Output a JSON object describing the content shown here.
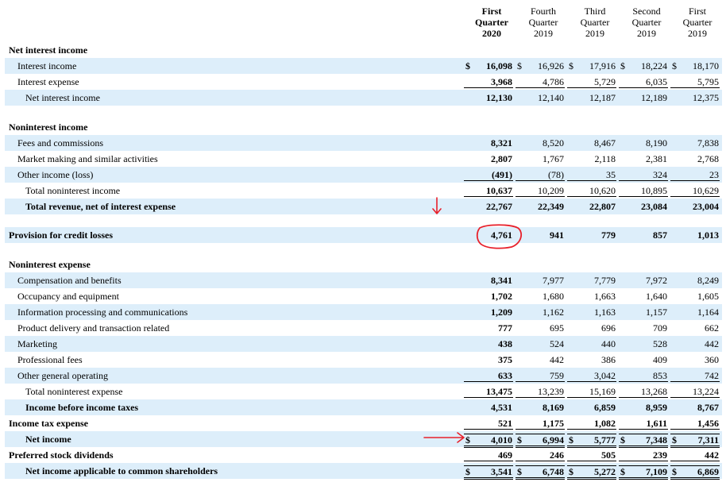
{
  "headers": [
    {
      "lines": [
        "First",
        "Quarter",
        "2020"
      ],
      "bold": true
    },
    {
      "lines": [
        "Fourth",
        "Quarter",
        "2019"
      ],
      "bold": false
    },
    {
      "lines": [
        "Third",
        "Quarter",
        "2019"
      ],
      "bold": false
    },
    {
      "lines": [
        "Second",
        "Quarter",
        "2019"
      ],
      "bold": false
    },
    {
      "lines": [
        "First",
        "Quarter",
        "2019"
      ],
      "bold": false
    }
  ],
  "rows": [
    {
      "label": "Net interest income",
      "bold": true,
      "indent": 0,
      "shade": false
    },
    {
      "label": "Interest income",
      "indent": 1,
      "shade": true,
      "values": [
        "16,098",
        "16,926",
        "17,916",
        "18,224",
        "18,170"
      ],
      "currency": true
    },
    {
      "label": "Interest expense",
      "indent": 1,
      "shade": false,
      "values": [
        "3,968",
        "4,786",
        "5,729",
        "6,035",
        "5,795"
      ],
      "rule": "single"
    },
    {
      "label": "Net interest income",
      "indent": 2,
      "shade": true,
      "values": [
        "12,130",
        "12,140",
        "12,187",
        "12,189",
        "12,375"
      ]
    },
    {
      "label": "Noninterest income",
      "bold": true,
      "indent": 0,
      "shade": false
    },
    {
      "label": "Fees and commissions",
      "indent": 1,
      "shade": true,
      "values": [
        "8,321",
        "8,520",
        "8,467",
        "8,190",
        "7,838"
      ]
    },
    {
      "label": "Market making and similar activities",
      "indent": 1,
      "shade": false,
      "values": [
        "2,807",
        "1,767",
        "2,118",
        "2,381",
        "2,768"
      ]
    },
    {
      "label": "Other income (loss)",
      "indent": 1,
      "shade": true,
      "values": [
        "(491)",
        "(78)",
        "35",
        "324",
        "23"
      ],
      "rule": "single"
    },
    {
      "label": "Total noninterest income",
      "indent": 2,
      "shade": false,
      "values": [
        "10,637",
        "10,209",
        "10,620",
        "10,895",
        "10,629"
      ],
      "rule": "single"
    },
    {
      "label": "Total revenue, net of interest expense",
      "bold": true,
      "indent": 2,
      "shade": true,
      "values": [
        "22,767",
        "22,349",
        "22,807",
        "23,084",
        "23,004"
      ]
    },
    {
      "label": "Provision for credit losses",
      "bold": true,
      "indent": 0,
      "shade": true,
      "values": [
        "4,761",
        "941",
        "779",
        "857",
        "1,013"
      ]
    },
    {
      "label": "Noninterest expense",
      "bold": true,
      "indent": 0,
      "shade": false
    },
    {
      "label": "Compensation and benefits",
      "indent": 1,
      "shade": true,
      "values": [
        "8,341",
        "7,977",
        "7,779",
        "7,972",
        "8,249"
      ]
    },
    {
      "label": "Occupancy and equipment",
      "indent": 1,
      "shade": false,
      "values": [
        "1,702",
        "1,680",
        "1,663",
        "1,640",
        "1,605"
      ]
    },
    {
      "label": "Information processing and communications",
      "indent": 1,
      "shade": true,
      "values": [
        "1,209",
        "1,162",
        "1,163",
        "1,157",
        "1,164"
      ]
    },
    {
      "label": "Product delivery and transaction related",
      "indent": 1,
      "shade": false,
      "values": [
        "777",
        "695",
        "696",
        "709",
        "662"
      ]
    },
    {
      "label": "Marketing",
      "indent": 1,
      "shade": true,
      "values": [
        "438",
        "524",
        "440",
        "528",
        "442"
      ]
    },
    {
      "label": "Professional fees",
      "indent": 1,
      "shade": false,
      "values": [
        "375",
        "442",
        "386",
        "409",
        "360"
      ]
    },
    {
      "label": "Other general operating",
      "indent": 1,
      "shade": true,
      "values": [
        "633",
        "759",
        "3,042",
        "853",
        "742"
      ],
      "rule": "single"
    },
    {
      "label": "Total noninterest expense",
      "indent": 2,
      "shade": false,
      "values": [
        "13,475",
        "13,239",
        "15,169",
        "13,268",
        "13,224"
      ],
      "rule": "single"
    },
    {
      "label": "Income before income taxes",
      "bold": true,
      "indent": 2,
      "shade": true,
      "values": [
        "4,531",
        "8,169",
        "6,859",
        "8,959",
        "8,767"
      ]
    },
    {
      "label": "Income tax expense",
      "bold": true,
      "indent": 0,
      "shade": false,
      "values": [
        "521",
        "1,175",
        "1,082",
        "1,611",
        "1,456"
      ],
      "rule": "single"
    },
    {
      "label": "Net income",
      "bold": true,
      "indent": 2,
      "shade": true,
      "values": [
        "4,010",
        "6,994",
        "5,777",
        "7,348",
        "7,311"
      ],
      "currency": true,
      "rule": "double"
    },
    {
      "label": "Preferred stock dividends",
      "bold": true,
      "indent": 0,
      "shade": false,
      "values": [
        "469",
        "246",
        "505",
        "239",
        "442"
      ],
      "rule": "single"
    },
    {
      "label": "Net income applicable to common shareholders",
      "bold": true,
      "indent": 2,
      "shade": true,
      "values": [
        "3,541",
        "6,748",
        "5,272",
        "7,109",
        "6,869"
      ],
      "currency": true,
      "rule": "double"
    }
  ],
  "currency_symbol": "$",
  "annotation_color": "#e8202a"
}
